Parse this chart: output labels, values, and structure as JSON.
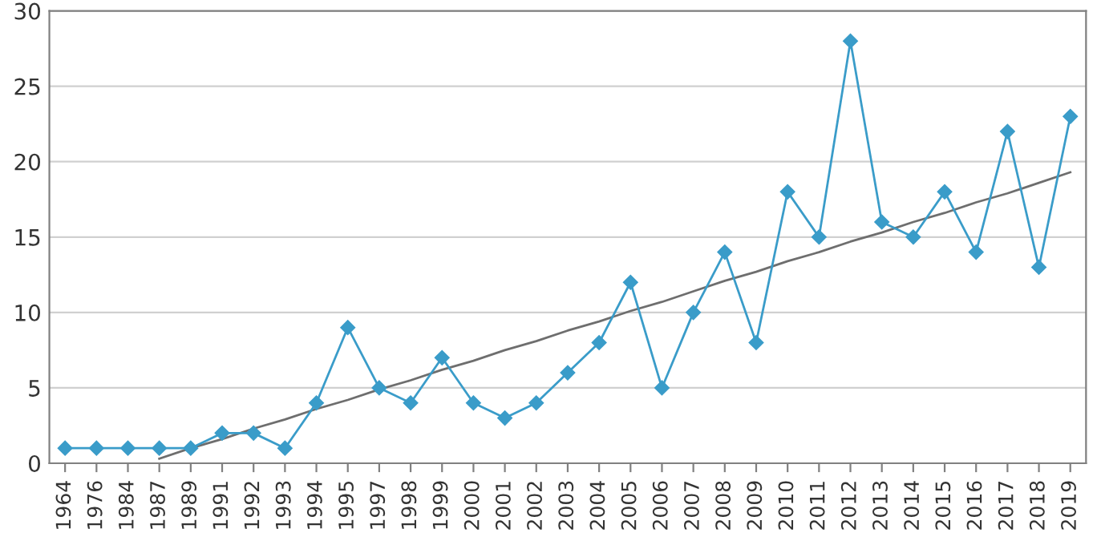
{
  "chart_data": {
    "type": "line",
    "categories": [
      "1964",
      "1976",
      "1984",
      "1987",
      "1989",
      "1991",
      "1992",
      "1993",
      "1994",
      "1995",
      "1997",
      "1998",
      "1999",
      "2000",
      "2001",
      "2002",
      "2003",
      "2004",
      "2005",
      "2006",
      "2007",
      "2008",
      "2009",
      "2010",
      "2011",
      "2012",
      "2013",
      "2014",
      "2015",
      "2016",
      "2017",
      "2018",
      "2019"
    ],
    "series": [
      {
        "color": "#3a9cc9",
        "marker": "diamond",
        "values": [
          1,
          1,
          1,
          1,
          1,
          2,
          2,
          1,
          4,
          9,
          5,
          4,
          7,
          4,
          3,
          4,
          6,
          8,
          12,
          5,
          10,
          14,
          8,
          18,
          15,
          28,
          16,
          15,
          18,
          14,
          22,
          13,
          23
        ]
      },
      {
        "type": "line",
        "color": "#6e6e6e",
        "marker": "none",
        "values": [
          null,
          null,
          null,
          0.3,
          1.0,
          1.6,
          2.3,
          2.9,
          3.6,
          4.2,
          4.9,
          5.5,
          6.2,
          6.8,
          7.5,
          8.1,
          8.8,
          9.4,
          10.1,
          10.7,
          11.4,
          12.1,
          12.7,
          13.4,
          14.0,
          14.7,
          15.3,
          16.0,
          16.6,
          17.3,
          17.9,
          18.6,
          19.3
        ]
      }
    ],
    "ylim": [
      0,
      30
    ],
    "yticks": [
      0,
      5,
      10,
      15,
      20,
      25,
      30
    ],
    "grid": "y"
  }
}
